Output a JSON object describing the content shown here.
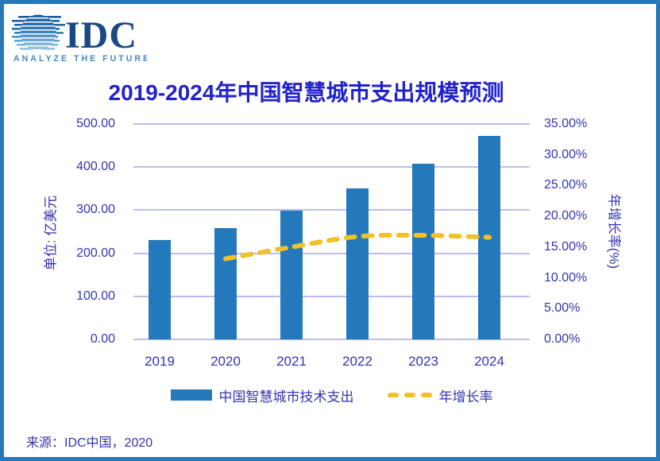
{
  "page": {
    "border_color": "#2878b8",
    "background": "#ffffff"
  },
  "logo": {
    "name": "IDC",
    "tagline": "ANALYZE THE FUTURE",
    "name_color": "#1a4a85",
    "tagline_color": "#4589c2"
  },
  "title": "2019-2024年中国智慧城市支出规模预测",
  "title_color": "#2222cc",
  "source": "来源：IDC中国，2020",
  "chart_data": {
    "type": "bar",
    "subtype": "combo-bar-line-dual-axis",
    "title": "2019-2024年中国智慧城市支出规模预测",
    "categories": [
      "2019",
      "2020",
      "2021",
      "2022",
      "2023",
      "2024"
    ],
    "series": [
      {
        "name": "中国智慧城市技术支出",
        "type": "bar",
        "axis": "left",
        "values": [
          230,
          259,
          298,
          350,
          407,
          473
        ],
        "color": "#2478bc"
      },
      {
        "name": "年增长率",
        "type": "dashed-line",
        "axis": "right",
        "values": [
          null,
          13.1,
          15.0,
          16.7,
          16.9,
          16.6
        ],
        "color": "#f2c029"
      }
    ],
    "left_axis": {
      "title": "单位: 亿美元",
      "min": 0,
      "max": 500,
      "ticks": [
        "500.00",
        "400.00",
        "300.00",
        "200.00",
        "100.00",
        "0.00"
      ]
    },
    "right_axis": {
      "title": "年增长率(%)",
      "min": 0,
      "max": 35,
      "ticks": [
        "35.00%",
        "30.00%",
        "25.00%",
        "20.00%",
        "15.00%",
        "10.00%",
        "5.00%",
        "0.00%"
      ]
    },
    "grid": true,
    "gridline_color": "#bcbcee",
    "tick_text_color": "#3434b2",
    "legend_position": "bottom",
    "legend": [
      {
        "label": "中国智慧城市技术支出",
        "swatch": "bar"
      },
      {
        "label": "年增长率",
        "swatch": "dash"
      }
    ]
  }
}
